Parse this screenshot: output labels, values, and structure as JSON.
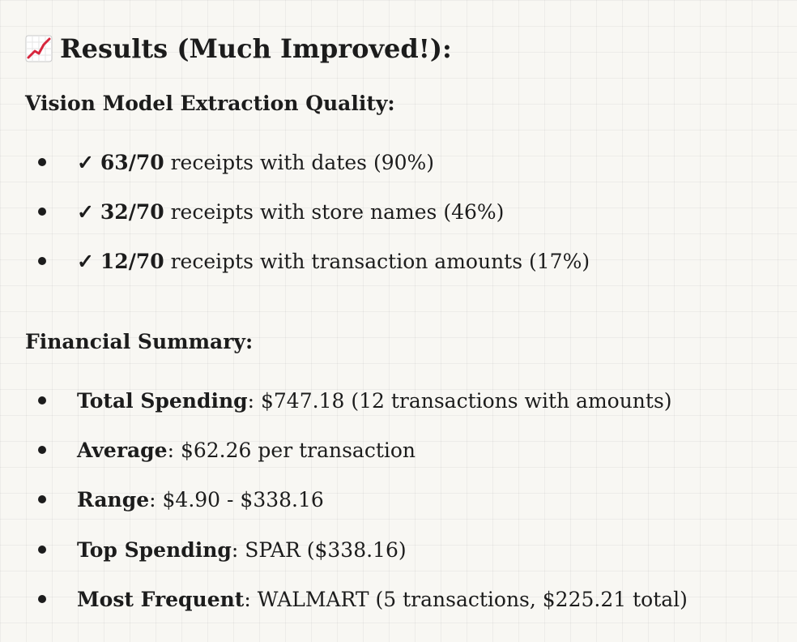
{
  "header": {
    "icon": "chart-increasing-icon",
    "title": "Results (Much Improved!):"
  },
  "extraction": {
    "title": "Vision Model Extraction Quality:",
    "items": [
      {
        "check": "✓",
        "count": "63/70",
        "text": "receipts with dates (90%)"
      },
      {
        "check": "✓",
        "count": "32/70",
        "text": "receipts with store names (46%)"
      },
      {
        "check": "✓",
        "count": "12/70",
        "text": "receipts with transaction amounts (17%)"
      }
    ]
  },
  "financial": {
    "title": "Financial Summary:",
    "items": [
      {
        "label": "Total Spending",
        "value": "$747.18 (12 transactions with amounts)"
      },
      {
        "label": "Average",
        "value": "$62.26 per transaction"
      },
      {
        "label": "Range",
        "value": "$4.90 - $338.16"
      },
      {
        "label": "Top Spending",
        "value": "SPAR ($338.16)"
      },
      {
        "label": "Most Frequent",
        "value": "WALMART (5 transactions, $225.21 total)"
      }
    ]
  },
  "colors": {
    "background": "#f8f7f3",
    "text": "#1c1c1c",
    "chart_line": "#d7263d"
  }
}
